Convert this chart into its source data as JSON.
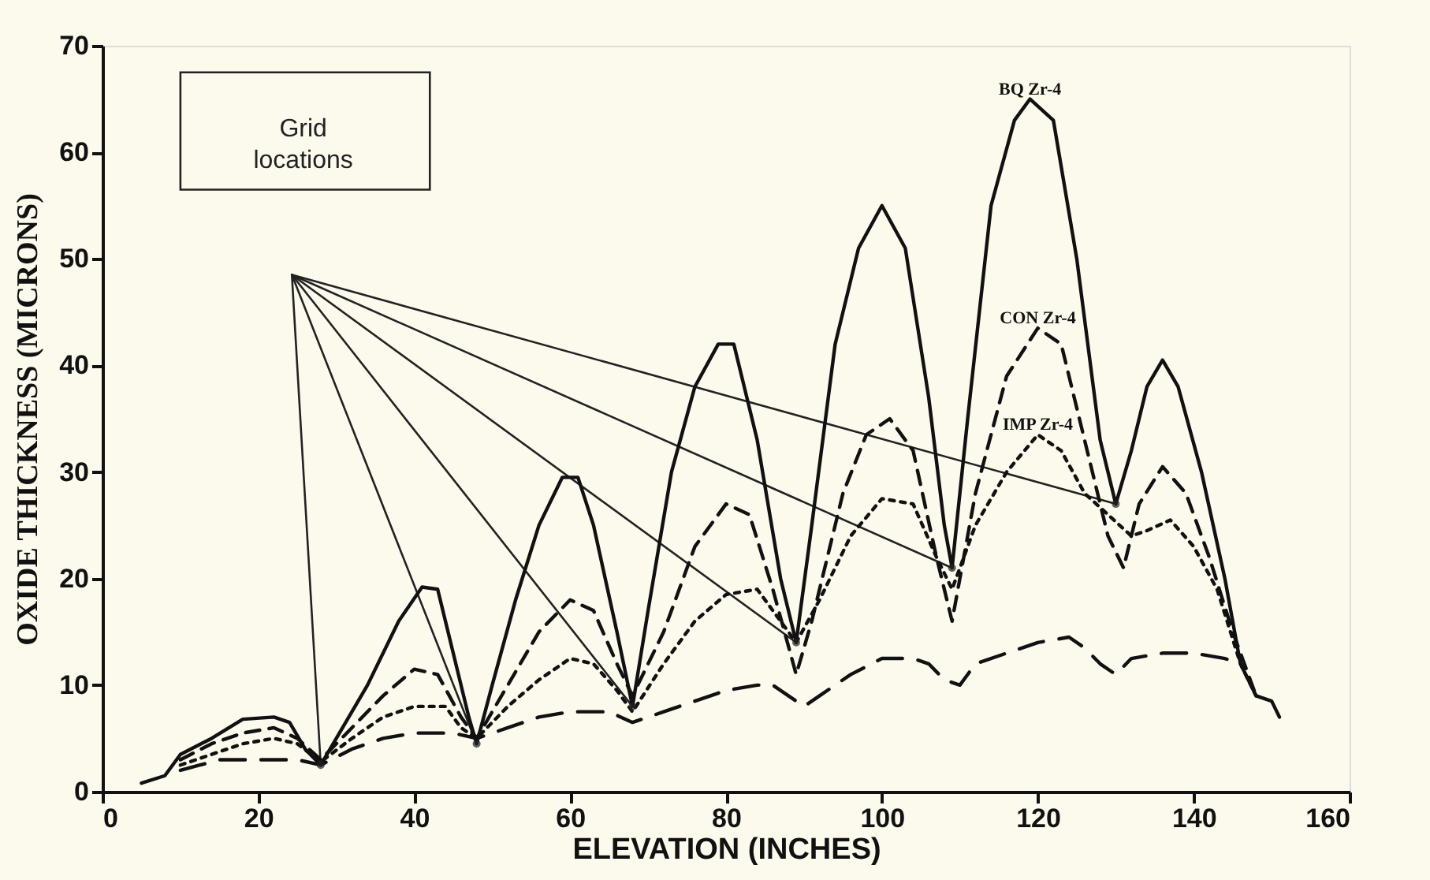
{
  "chart_data": {
    "type": "line",
    "xlabel": "ELEVATION (INCHES)",
    "ylabel": "OXIDE THICKNESS (MICRONS)",
    "xlim": [
      0,
      160
    ],
    "xticks": [
      0,
      20,
      40,
      60,
      80,
      100,
      120,
      140,
      160
    ],
    "ylim": [
      0,
      70
    ],
    "yticks": [
      0,
      10,
      20,
      30,
      40,
      50,
      60,
      70
    ],
    "grid": false,
    "marker": "none",
    "annotations": [
      "Grid locations"
    ],
    "series": [
      {
        "name": "BQ Zr-4",
        "color": "#111111",
        "line_style": "solid",
        "x": [
          5,
          8,
          10,
          14,
          18,
          22,
          24,
          26,
          28,
          30,
          34,
          38,
          41,
          43,
          45,
          47,
          48,
          50,
          53,
          56,
          59,
          61,
          63,
          66,
          68,
          70,
          73,
          76,
          79,
          81,
          84,
          87,
          89,
          91,
          94,
          97,
          100,
          103,
          106,
          108,
          109,
          111,
          114,
          117,
          119,
          122,
          125,
          128,
          130,
          132,
          134,
          136,
          138,
          141,
          144,
          146,
          148,
          150,
          151
        ],
        "values": [
          0.8,
          1.5,
          3.5,
          5,
          6.8,
          7,
          6.5,
          4,
          2.5,
          5,
          10,
          16,
          19.2,
          19,
          13,
          7,
          4.5,
          10,
          18,
          25,
          29.5,
          29.5,
          25,
          15,
          8,
          17,
          30,
          38,
          42,
          42,
          33,
          20,
          14,
          25,
          42,
          51,
          55,
          51,
          37,
          25,
          21,
          35,
          55,
          63,
          65,
          63,
          50,
          33,
          27,
          32,
          38,
          40.5,
          38,
          30,
          20,
          12,
          9,
          8.5,
          7
        ]
      },
      {
        "name": "CON Zr-4",
        "color": "#111111",
        "line_style": "dashed",
        "x": [
          10,
          14,
          18,
          22,
          25,
          28,
          32,
          36,
          40,
          43,
          46,
          48,
          52,
          56,
          60,
          63,
          66,
          68,
          72,
          76,
          80,
          83,
          86,
          89,
          91,
          95,
          98,
          101,
          104,
          107,
          109,
          112,
          116,
          120,
          123,
          126,
          129,
          131,
          133,
          136,
          139,
          142,
          145,
          148
        ],
        "values": [
          3,
          4.5,
          5.5,
          6,
          5,
          3,
          6,
          9,
          11.5,
          11,
          7,
          5,
          10,
          15,
          18,
          17,
          12,
          9,
          15,
          23,
          27,
          26,
          19,
          11,
          16,
          28,
          33.5,
          35,
          32,
          22,
          16,
          28,
          39,
          43.5,
          42,
          33,
          24,
          21,
          27,
          30.5,
          28,
          22,
          15,
          9
        ]
      },
      {
        "name": "IMP Zr-4",
        "color": "#111111",
        "line_style": "dotted",
        "x": [
          10,
          14,
          18,
          22,
          25,
          28,
          32,
          36,
          40,
          44,
          46,
          48,
          52,
          56,
          60,
          63,
          66,
          68,
          72,
          76,
          80,
          84,
          87,
          89,
          92,
          96,
          100,
          104,
          107,
          109,
          112,
          116,
          120,
          123,
          126,
          129,
          132,
          134,
          137,
          140,
          143,
          146,
          148
        ],
        "values": [
          2.5,
          3.5,
          4.5,
          5,
          4.5,
          2.8,
          5,
          7,
          8,
          8,
          6,
          5,
          8,
          10.5,
          12.5,
          12,
          9.5,
          7.5,
          12,
          16,
          18.5,
          19,
          16,
          14,
          18,
          24,
          27.5,
          27,
          22,
          19,
          25,
          30,
          33.5,
          32,
          28,
          26,
          24,
          24.5,
          25.5,
          23,
          19,
          12,
          9
        ]
      },
      {
        "color": "#111111",
        "line_style": "longdash",
        "x": [
          10,
          15,
          20,
          25,
          28,
          32,
          36,
          40,
          45,
          48,
          52,
          56,
          60,
          65,
          68,
          72,
          76,
          80,
          84,
          86,
          88,
          90,
          92,
          96,
          100,
          104,
          106,
          108,
          110,
          112,
          116,
          120,
          124,
          126,
          128,
          130,
          132,
          136,
          140,
          144,
          146
        ],
        "values": [
          2,
          3,
          3,
          3,
          2.5,
          4,
          5,
          5.5,
          5.5,
          5,
          6,
          7,
          7.5,
          7.5,
          6.5,
          7.5,
          8.5,
          9.5,
          10,
          10,
          9,
          8,
          9,
          11,
          12.5,
          12.5,
          12,
          10.5,
          10,
          12,
          13,
          14,
          14.5,
          13.5,
          12,
          11,
          12.5,
          13,
          13,
          12.5,
          12
        ]
      }
    ]
  }
}
